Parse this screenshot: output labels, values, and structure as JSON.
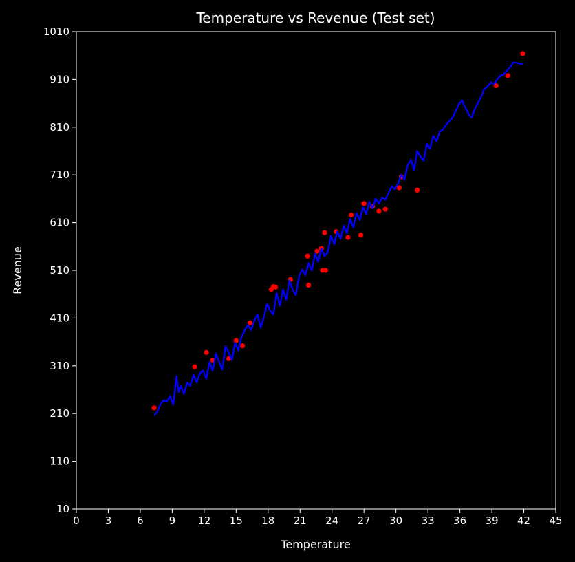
{
  "chart_data": {
    "type": "line",
    "title": "Temperature vs Revenue (Test set)",
    "xlabel": "Temperature",
    "ylabel": "Revenue",
    "xlim": [
      0,
      45
    ],
    "ylim": [
      10,
      1010
    ],
    "xticks": [
      0,
      3,
      6,
      9,
      12,
      15,
      18,
      21,
      24,
      27,
      30,
      33,
      36,
      39,
      42,
      45
    ],
    "yticks": [
      10,
      110,
      210,
      310,
      410,
      510,
      610,
      710,
      810,
      910,
      1010
    ],
    "grid": false,
    "colors": {
      "background": "#000000",
      "axes": "#ffffff",
      "text": "#ffffff",
      "line": "#0000ff",
      "points": "#ff0000"
    },
    "series": [
      {
        "kind": "scatter",
        "x": [
          7.3,
          11.1,
          12.2,
          12.8,
          14.3,
          15.0,
          15.6,
          16.3,
          18.3,
          18.5,
          18.7,
          20.1,
          21.7,
          21.8,
          22.6,
          23.0,
          23.1,
          23.3,
          23.4,
          24.4,
          25.5,
          25.8,
          26.7,
          27.0,
          27.8,
          28.4,
          29.0,
          30.3,
          30.5,
          32.0,
          39.4,
          40.5,
          41.9
        ],
        "y": [
          222,
          308,
          338,
          322,
          325,
          363,
          352,
          400,
          470,
          476,
          475,
          491,
          540,
          479,
          550,
          556,
          510,
          589,
          510,
          591,
          579,
          626,
          584,
          650,
          644,
          634,
          638,
          683,
          706,
          678,
          897,
          918,
          964
        ]
      },
      {
        "kind": "line",
        "x": [
          7.3,
          7.6,
          7.9,
          8.2,
          8.5,
          8.8,
          9.1,
          9.4,
          9.6,
          9.8,
          10.1,
          10.4,
          10.7,
          11.0,
          11.3,
          11.6,
          11.9,
          12.2,
          12.5,
          12.8,
          13.1,
          13.4,
          13.7,
          14.0,
          14.3,
          14.6,
          14.9,
          15.2,
          15.5,
          15.8,
          16.1,
          16.4,
          16.7,
          17.0,
          17.3,
          17.6,
          17.9,
          18.2,
          18.5,
          18.8,
          19.1,
          19.4,
          19.7,
          20.0,
          20.3,
          20.6,
          20.9,
          21.2,
          21.5,
          21.8,
          22.1,
          22.4,
          22.7,
          23.0,
          23.3,
          23.6,
          23.9,
          24.2,
          24.5,
          24.8,
          25.1,
          25.4,
          25.7,
          26.0,
          26.3,
          26.6,
          26.9,
          27.2,
          27.5,
          27.8,
          28.1,
          28.4,
          28.7,
          29.0,
          29.3,
          29.6,
          29.9,
          30.2,
          30.5,
          30.8,
          31.1,
          31.4,
          31.7,
          32.0,
          32.3,
          32.6,
          32.9,
          33.2,
          33.5,
          33.8,
          34.1,
          34.4,
          34.7,
          35.0,
          35.3,
          35.6,
          35.9,
          36.2,
          36.5,
          36.8,
          37.1,
          37.4,
          37.7,
          38.0,
          38.3,
          38.6,
          38.9,
          39.2,
          39.5,
          39.8,
          40.1,
          40.4,
          40.7,
          41.0,
          41.3,
          41.6,
          41.9
        ],
        "y": [
          206,
          214,
          230,
          238,
          236,
          246,
          229,
          289,
          255,
          268,
          251,
          275,
          268,
          292,
          275,
          295,
          300,
          283,
          318,
          300,
          336,
          318,
          302,
          351,
          338,
          322,
          358,
          342,
          370,
          384,
          396,
          385,
          404,
          418,
          390,
          412,
          440,
          425,
          418,
          462,
          436,
          470,
          448,
          489,
          470,
          458,
          498,
          512,
          500,
          525,
          510,
          545,
          528,
          556,
          540,
          548,
          582,
          565,
          592,
          576,
          604,
          588,
          618,
          600,
          630,
          615,
          642,
          628,
          654,
          640,
          660,
          650,
          662,
          658,
          672,
          686,
          680,
          692,
          710,
          700,
          730,
          742,
          720,
          760,
          748,
          740,
          775,
          765,
          792,
          780,
          800,
          805,
          815,
          822,
          830,
          843,
          858,
          866,
          852,
          838,
          830,
          848,
          861,
          874,
          890,
          895,
          904,
          900,
          910,
          918,
          920,
          928,
          935,
          945,
          945,
          943,
          942
        ]
      }
    ]
  }
}
